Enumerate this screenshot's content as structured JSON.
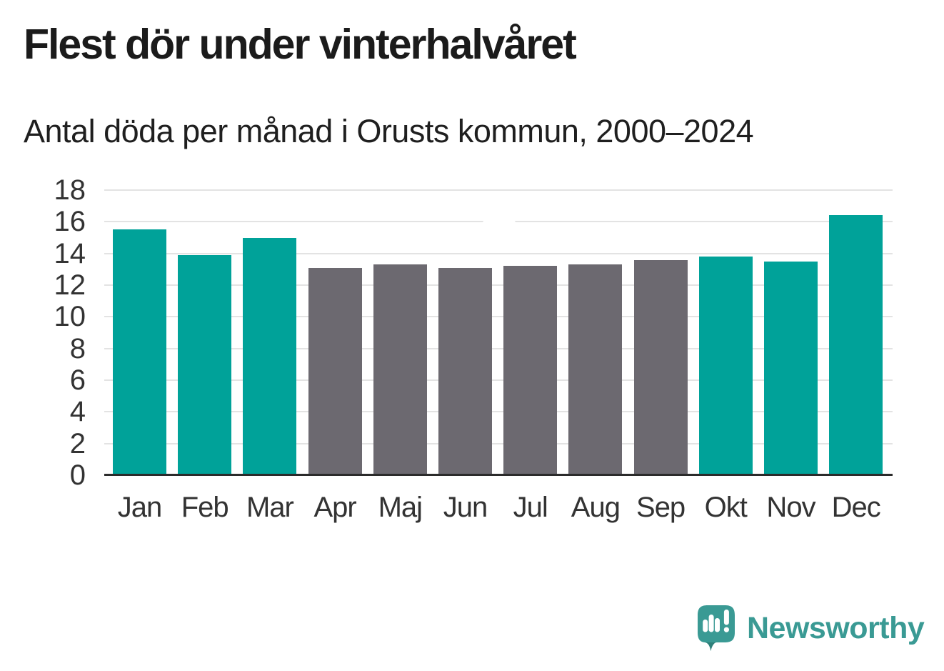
{
  "chart_data": {
    "type": "bar",
    "title": "Flest dör under vinterhalvåret",
    "subtitle": "Antal döda per månad i Orusts kommun, 2000–2024",
    "categories": [
      "Jan",
      "Feb",
      "Mar",
      "Apr",
      "Maj",
      "Jun",
      "Jul",
      "Aug",
      "Sep",
      "Okt",
      "Nov",
      "Dec"
    ],
    "values": [
      15.5,
      13.9,
      15.0,
      13.1,
      13.3,
      13.1,
      13.2,
      13.3,
      13.6,
      13.8,
      13.5,
      16.4
    ],
    "highlighted_categories": [
      "Jan",
      "Feb",
      "Mar",
      "Okt",
      "Nov",
      "Dec"
    ],
    "xlabel": "",
    "ylabel": "",
    "ylim": [
      0,
      18
    ],
    "yticks": [
      0,
      2,
      4,
      6,
      8,
      10,
      12,
      14,
      16,
      18
    ],
    "grid": true,
    "legend": false
  },
  "colors": {
    "bar_highlight": "#00a299",
    "bar_default": "#6c6970",
    "gridline": "#e3e3e3",
    "axis": "#2b2b2b",
    "title_text": "#1b1b1b",
    "subtitle_text": "#1f1f1f",
    "tick_text": "#333333",
    "logo": "#3a9a94",
    "logo_dark": "#2e807a",
    "logo_glyph": "#ffffff"
  },
  "branding": {
    "logo_text": "Newsworthy",
    "logo_icon": "newsworthy-speech-bubble-barchart-icon"
  }
}
